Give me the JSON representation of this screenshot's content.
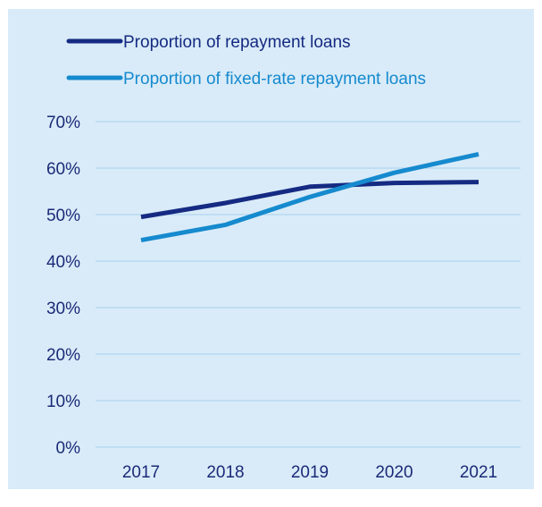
{
  "chart_data": {
    "type": "line",
    "title": "",
    "xlabel": "",
    "ylabel": "",
    "categories": [
      "2017",
      "2018",
      "2019",
      "2020",
      "2021"
    ],
    "y_ticks": [
      "0%",
      "10%",
      "20%",
      "30%",
      "40%",
      "50%",
      "60%",
      "70%"
    ],
    "ylim": [
      0,
      70
    ],
    "grid": true,
    "legend_position": "top-left",
    "series": [
      {
        "name": "Proportion of repayment loans",
        "color": "#152a82",
        "values": [
          49.5,
          52.5,
          56,
          56.8,
          57
        ]
      },
      {
        "name": "Proportion of fixed-rate repayment loans",
        "color": "#168ace",
        "values": [
          44.5,
          47.8,
          53.8,
          59,
          63
        ]
      }
    ]
  },
  "colors": {
    "panel_background": "#d9ebf8",
    "gridline": "#a8d2ee",
    "axis_text": "#1a2a78"
  }
}
